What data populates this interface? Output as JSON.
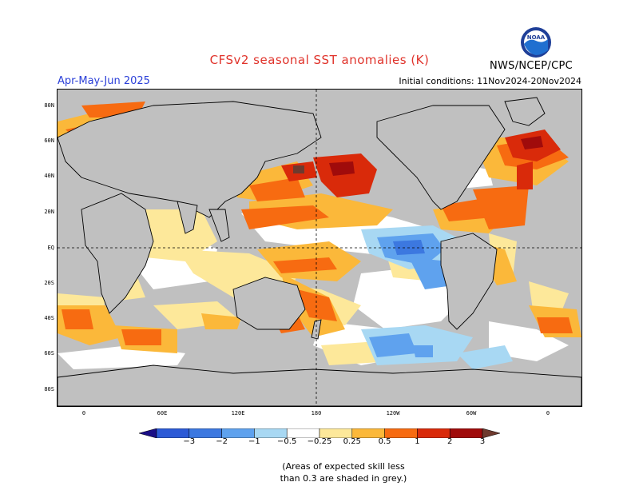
{
  "title": "CFSv2 seasonal SST anomalies (K)",
  "agency": "NWS/NCEP/CPC",
  "logo_text": "NOAA",
  "season": "Apr-May-Jun 2025",
  "initial_conditions": "Initial conditions: 11Nov2024-20Nov2024",
  "lat_labels": [
    "80N",
    "60N",
    "40N",
    "20N",
    "EQ",
    "20S",
    "40S",
    "60S",
    "80S"
  ],
  "lon_labels": [
    "0",
    "60E",
    "120E",
    "180",
    "120W",
    "60W",
    "0"
  ],
  "colorbar": {
    "labels": [
      "−3",
      "−2",
      "−1",
      "−0.5",
      "−0.25",
      "0.25",
      "0.5",
      "1",
      "2",
      "3"
    ],
    "colors": [
      "#1a0e86",
      "#2c5ad6",
      "#3c78e0",
      "#5fa2ee",
      "#a8d8f3",
      "#ffffff",
      "#fde89a",
      "#fbb83a",
      "#f76b11",
      "#d92a0a",
      "#a00b0b",
      "#6e3a2e"
    ]
  },
  "note_line1": "(Areas of expected skill less",
  "note_line2": "than 0.3 are shaded in grey.)"
}
